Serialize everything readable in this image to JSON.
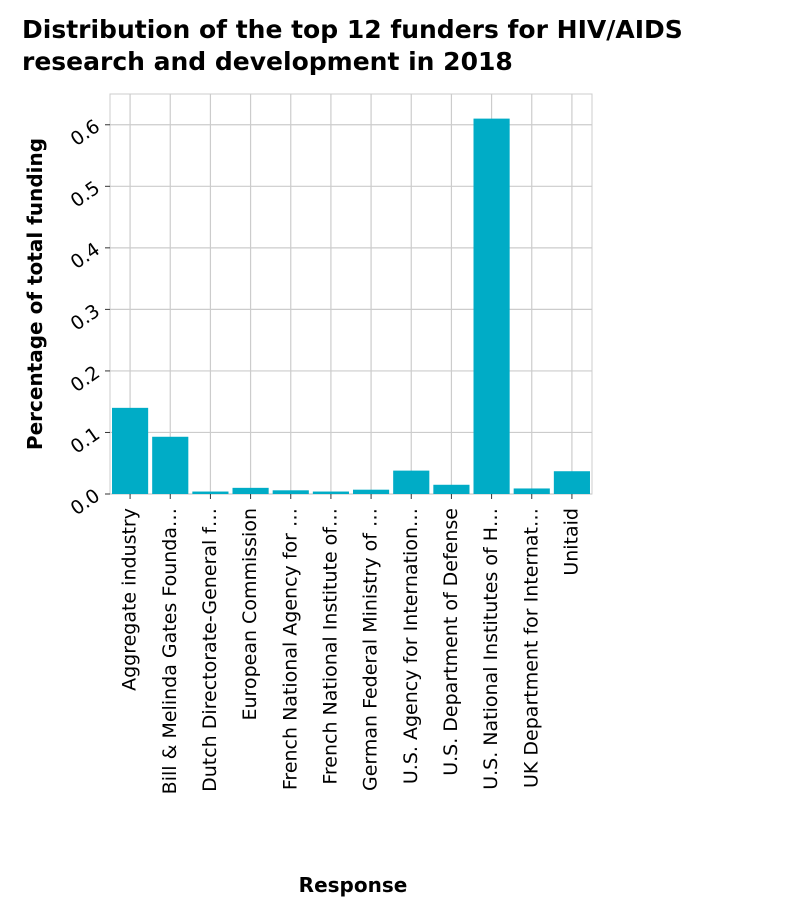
{
  "chart_data": {
    "type": "bar",
    "title": "Distribution of the top 12 funders for HIV/AIDS research and development in 2018",
    "xlabel": "Response",
    "ylabel": "Percentage of total funding",
    "categories": [
      "Aggregate industry",
      "Bill & Melinda Gates Founda…",
      "Dutch Directorate-General f…",
      "European Commission",
      "French National Agency for …",
      "French National Institute of…",
      "German Federal Ministry of …",
      "U.S. Agency for Internation…",
      "U.S. Department of Defense",
      "U.S. National Institutes of H…",
      "UK Department for Internat…",
      "Unitaid"
    ],
    "values": [
      0.14,
      0.093,
      0.004,
      0.01,
      0.006,
      0.004,
      0.007,
      0.038,
      0.015,
      0.61,
      0.009,
      0.037
    ],
    "ylim": [
      0,
      0.65
    ],
    "yticks": [
      0.0,
      0.1,
      0.2,
      0.3,
      0.4,
      0.5,
      0.6
    ],
    "ytick_labels": [
      "0.0",
      "0.1",
      "0.2",
      "0.3",
      "0.4",
      "0.5",
      "0.6"
    ],
    "grid": true,
    "bar_color": "#00acc6",
    "grid_color": "#cccccc"
  }
}
